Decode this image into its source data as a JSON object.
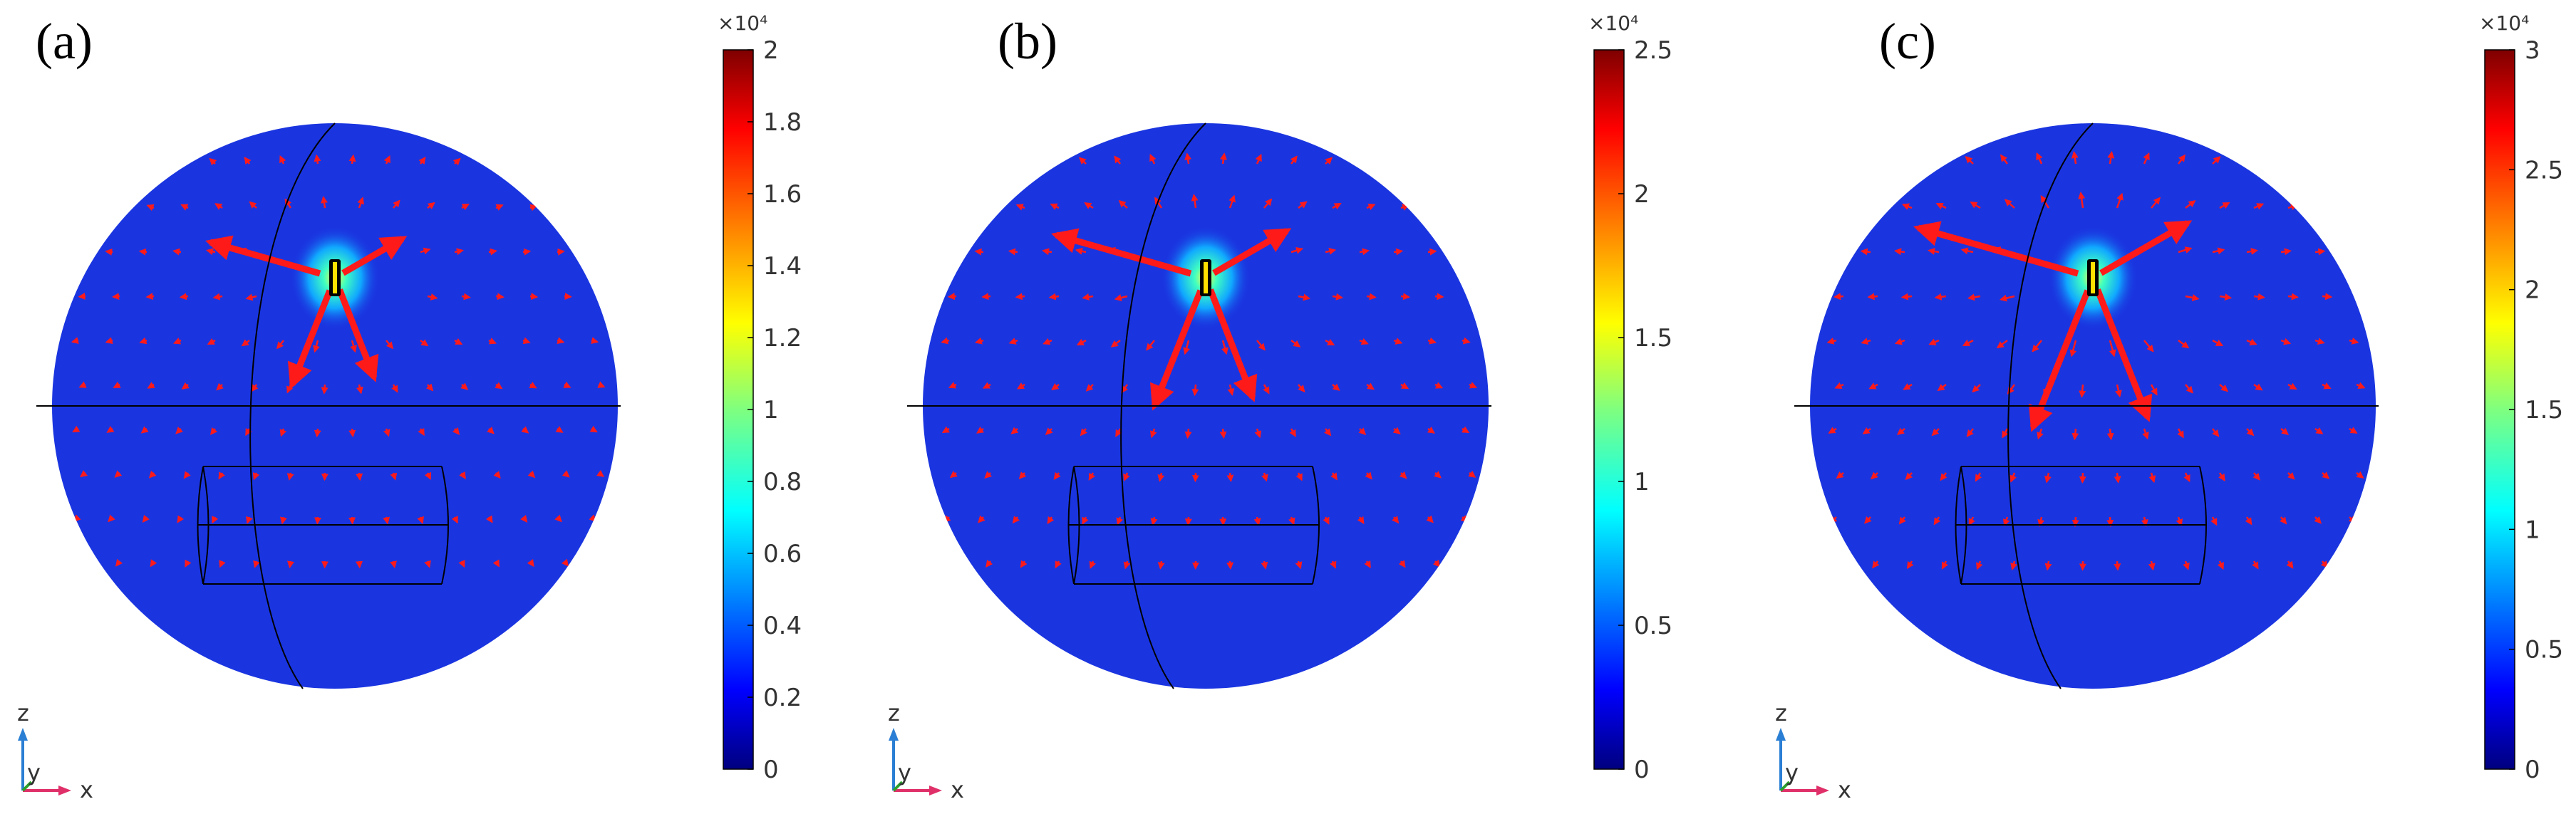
{
  "panels": [
    {
      "label": "(a)",
      "colorbar": {
        "exponent": "×10⁴",
        "max": 2,
        "ticks": [
          "0",
          "0.2",
          "0.4",
          "0.6",
          "0.8",
          "1",
          "1.2",
          "1.4",
          "1.6",
          "1.8",
          "2"
        ],
        "tick_values": [
          0,
          0.2,
          0.4,
          0.6,
          0.8,
          1,
          1.2,
          1.4,
          1.6,
          1.8,
          2
        ]
      },
      "arrow_scale": 1.0
    },
    {
      "label": "(b)",
      "colorbar": {
        "exponent": "×10⁴",
        "max": 2.5,
        "ticks": [
          "0",
          "0.5",
          "1",
          "1.5",
          "2",
          "2.5"
        ],
        "tick_values": [
          0,
          0.5,
          1,
          1.5,
          2,
          2.5
        ]
      },
      "arrow_scale": 1.2
    },
    {
      "label": "(c)",
      "colorbar": {
        "exponent": "×10⁴",
        "max": 3,
        "ticks": [
          "0",
          "0.5",
          "1",
          "1.5",
          "2",
          "2.5",
          "3"
        ],
        "tick_values": [
          0,
          0.5,
          1,
          1.5,
          2,
          2.5,
          3
        ]
      },
      "arrow_scale": 1.4
    }
  ],
  "triad": {
    "z": "z",
    "x": "x",
    "y": "y"
  },
  "colors": {
    "background_field": "#1a35e0",
    "arrow": "#ff1a1a",
    "outline": "#000000"
  }
}
